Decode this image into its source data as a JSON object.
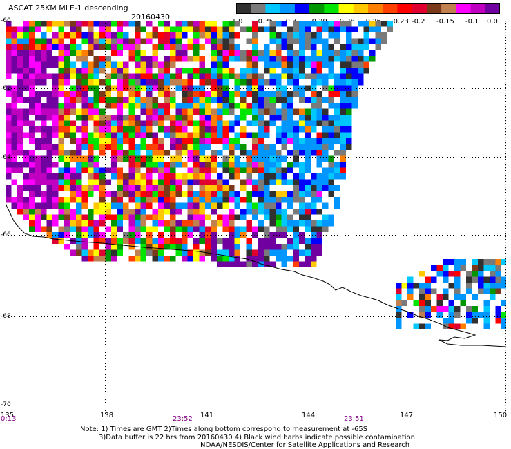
{
  "header": {
    "title": "ASCAT 25KM MLE-1 descending",
    "date": "20160430"
  },
  "colorbar": {
    "colors": [
      "#303030",
      "#7a7a7a",
      "#00c8ff",
      "#0096ff",
      "#0000ff",
      "#009600",
      "#00e600",
      "#ffff00",
      "#ffc800",
      "#ff8000",
      "#ff4000",
      "#ff0000",
      "#e00030",
      "#7a3a1a",
      "#c08050",
      "#ff00ff",
      "#c000c0",
      "#7000a0"
    ],
    "labels": [
      "-1.0",
      "-0.35",
      "-0.3",
      "-0.29",
      "-0.28",
      "-0.26",
      "-0.23",
      "-0.2",
      "-0.15",
      "-0.1",
      "0.0"
    ]
  },
  "map": {
    "lat_labels": [
      "-60",
      "-62",
      "-64",
      "-66",
      "-68",
      "-70"
    ],
    "lon_labels": [
      "135",
      "138",
      "141",
      "144",
      "147",
      "150"
    ],
    "time_labels": [
      "0:13",
      "23:52",
      "23:51"
    ]
  },
  "footer": {
    "line1": "Note: 1) Times are GMT 2)Times along bottom correspond to measurement at -65S",
    "line2": "3)Data buffer is 22 hrs from 20160430 4) Black wind barbs indicate possible contamination",
    "line3": "NOAA/NESDIS/Center for Satellite Applications and Research"
  }
}
